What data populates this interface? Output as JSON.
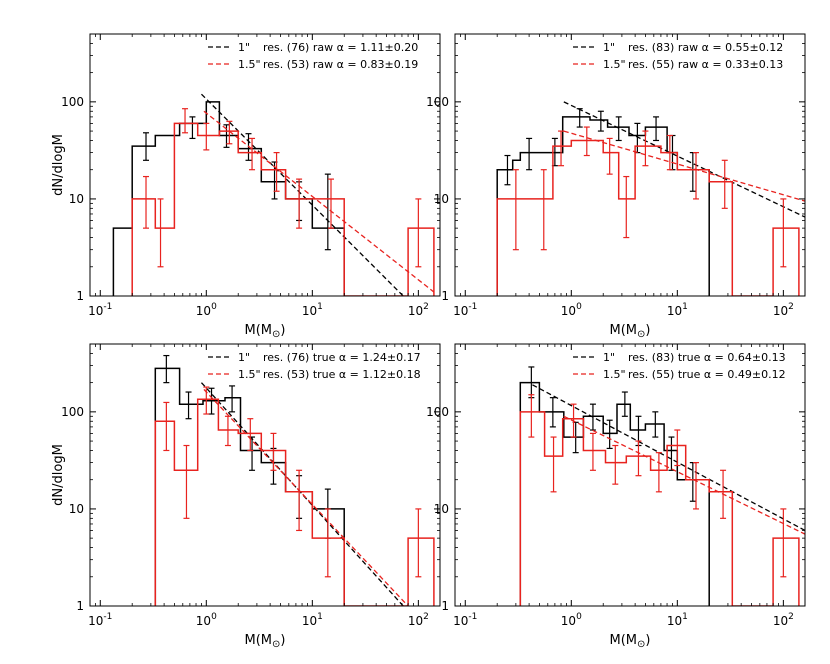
{
  "figure": {
    "ylabel": "dN/dlogM",
    "xlabel": "M(M",
    "xlabel_sub": "⊙",
    "xlabel_close": ")"
  },
  "axes": {
    "xscale": "log",
    "yscale": "log",
    "xlim": [
      0.08,
      160
    ],
    "ylim": [
      1,
      500
    ],
    "xticks": [
      {
        "value": 0.1,
        "base": "10",
        "exp": "-1"
      },
      {
        "value": 1,
        "base": "10",
        "exp": "0"
      },
      {
        "value": 10,
        "base": "10",
        "exp": "1"
      },
      {
        "value": 100,
        "base": "10",
        "exp": "2"
      }
    ],
    "yticks": [
      {
        "value": 1,
        "label": "1"
      },
      {
        "value": 10,
        "label": "10"
      },
      {
        "value": 100,
        "label": "100"
      }
    ]
  },
  "colors": {
    "black": "#000000",
    "red": "#e8231f"
  },
  "chart_data": [
    {
      "type": "line",
      "panel": "top-left",
      "show_xlabel": true,
      "show_ylabel": true,
      "legend_position": "top-right",
      "bin_edges_label": "histogram",
      "series": [
        {
          "name_a": "1\"",
          "name_b": "res. (76) raw",
          "alpha_label": "α = 1.11±0.20",
          "color": "black",
          "hist": [
            [
              0.133,
              5
            ],
            [
              0.2,
              35
            ],
            [
              0.33,
              45
            ],
            [
              0.56,
              60
            ],
            [
              1.0,
              100
            ],
            [
              1.33,
              45
            ],
            [
              2.0,
              33
            ],
            [
              3.3,
              15
            ],
            [
              5.6,
              10
            ],
            [
              10,
              5
            ],
            [
              20,
              0
            ]
          ],
          "hist_end": 20,
          "errors": [
            [
              0.27,
              35,
              25,
              48
            ],
            [
              0.74,
              55,
              42,
              70
            ],
            [
              1.55,
              45,
              34,
              58
            ],
            [
              2.5,
              35,
              25,
              47
            ],
            [
              4.4,
              16,
              10,
              24
            ],
            [
              7.5,
              10,
              6,
              15
            ],
            [
              14,
              5,
              3,
              18
            ]
          ],
          "fit": [
            [
              0.9,
              120
            ],
            [
              72,
              1
            ]
          ]
        },
        {
          "name_a": "1.5\"",
          "name_b": "res. (53) raw",
          "alpha_label": "α = 0.83±0.19",
          "color": "red",
          "hist": [
            [
              0.2,
              10
            ],
            [
              0.33,
              5
            ],
            [
              0.5,
              60
            ],
            [
              0.83,
              45
            ],
            [
              1.33,
              50
            ],
            [
              2.0,
              30
            ],
            [
              3.3,
              20
            ],
            [
              5.6,
              10
            ],
            [
              10,
              10
            ],
            [
              20,
              0
            ],
            [
              80,
              5
            ],
            [
              140,
              0
            ]
          ],
          "hist_end": 140,
          "errors": [
            [
              0.27,
              10,
              5,
              17
            ],
            [
              0.37,
              5,
              2,
              10
            ],
            [
              0.63,
              65,
              48,
              85
            ],
            [
              1.0,
              45,
              32,
              60
            ],
            [
              1.65,
              50,
              37,
              63
            ],
            [
              2.7,
              30,
              20,
              42
            ],
            [
              4.6,
              20,
              12,
              30
            ],
            [
              7.5,
              10,
              5,
              16
            ],
            [
              15,
              10,
              5,
              16
            ],
            [
              100,
              5,
              2,
              10
            ]
          ],
          "fit": [
            [
              0.95,
              80
            ],
            [
              140,
              1.1
            ]
          ]
        }
      ]
    },
    {
      "type": "line",
      "panel": "top-right",
      "show_xlabel": true,
      "show_ylabel": false,
      "legend_position": "top-right",
      "series": [
        {
          "name_a": "1\"",
          "name_b": "res. (83) raw",
          "alpha_label": "α = 0.55±0.12",
          "color": "black",
          "hist": [
            [
              0.2,
              20
            ],
            [
              0.28,
              25
            ],
            [
              0.33,
              30
            ],
            [
              0.6,
              30
            ],
            [
              0.83,
              70
            ],
            [
              1.5,
              65
            ],
            [
              2.2,
              55
            ],
            [
              3.5,
              45
            ],
            [
              5.0,
              55
            ],
            [
              8.0,
              30
            ],
            [
              10,
              20
            ],
            [
              20,
              0
            ]
          ],
          "hist_end": 20,
          "errors": [
            [
              0.25,
              20,
              14,
              28
            ],
            [
              0.4,
              30,
              20,
              42
            ],
            [
              0.7,
              30,
              22,
              42
            ],
            [
              1.2,
              70,
              55,
              85
            ],
            [
              1.9,
              65,
              50,
              80
            ],
            [
              2.8,
              55,
              40,
              70
            ],
            [
              4.2,
              45,
              30,
              60
            ],
            [
              6.3,
              55,
              40,
              70
            ],
            [
              9.0,
              30,
              20,
              45
            ],
            [
              14,
              20,
              12,
              30
            ]
          ],
          "fit": [
            [
              0.85,
              100
            ],
            [
              160,
              6.5
            ]
          ]
        },
        {
          "name_a": "1.5\"",
          "name_b": "res. (55) raw",
          "alpha_label": "α = 0.33±0.13",
          "color": "red",
          "hist": [
            [
              0.2,
              10
            ],
            [
              0.5,
              10
            ],
            [
              0.67,
              35
            ],
            [
              1.0,
              40
            ],
            [
              2.0,
              30
            ],
            [
              2.8,
              10
            ],
            [
              4.0,
              35
            ],
            [
              7.0,
              30
            ],
            [
              10,
              20
            ],
            [
              20,
              15
            ],
            [
              33,
              0
            ],
            [
              80,
              5
            ],
            [
              140,
              0
            ]
          ],
          "hist_end": 140,
          "errors": [
            [
              0.3,
              10,
              3,
              20
            ],
            [
              0.55,
              10,
              3,
              20
            ],
            [
              0.8,
              35,
              22,
              50
            ],
            [
              1.4,
              40,
              28,
              55
            ],
            [
              2.3,
              30,
              18,
              42
            ],
            [
              3.3,
              10,
              4,
              17
            ],
            [
              5.0,
              35,
              22,
              50
            ],
            [
              8.5,
              30,
              20,
              45
            ],
            [
              15,
              20,
              10,
              30
            ],
            [
              28,
              15,
              8,
              25
            ],
            [
              100,
              5,
              2,
              10
            ]
          ],
          "fit": [
            [
              0.85,
              50
            ],
            [
              160,
              9.5
            ]
          ]
        }
      ]
    },
    {
      "type": "line",
      "panel": "bottom-left",
      "show_xlabel": true,
      "show_ylabel": true,
      "legend_position": "top-right",
      "series": [
        {
          "name_a": "1\"",
          "name_b": "res. (76) true",
          "alpha_label": "α = 1.24±0.17",
          "color": "black",
          "hist": [
            [
              0.33,
              280
            ],
            [
              0.56,
              120
            ],
            [
              0.93,
              130
            ],
            [
              1.5,
              140
            ],
            [
              2.1,
              40
            ],
            [
              3.3,
              30
            ],
            [
              5.6,
              15
            ],
            [
              10,
              10
            ],
            [
              20,
              0
            ]
          ],
          "hist_end": 20,
          "errors": [
            [
              0.42,
              280,
              200,
              380
            ],
            [
              0.68,
              120,
              85,
              160
            ],
            [
              1.12,
              130,
              95,
              175
            ],
            [
              1.75,
              140,
              100,
              185
            ],
            [
              2.7,
              40,
              25,
              55
            ],
            [
              4.3,
              30,
              18,
              42
            ],
            [
              7.5,
              15,
              8,
              22
            ],
            [
              14,
              10,
              5,
              16
            ]
          ],
          "fit": [
            [
              0.9,
              200
            ],
            [
              72,
              1
            ]
          ]
        },
        {
          "name_a": "1.5\"",
          "name_b": "res. (53) true",
          "alpha_label": "α = 1.12±0.18",
          "color": "red",
          "hist": [
            [
              0.33,
              80
            ],
            [
              0.5,
              25
            ],
            [
              0.83,
              135
            ],
            [
              1.3,
              65
            ],
            [
              2.0,
              60
            ],
            [
              3.3,
              40
            ],
            [
              5.6,
              15
            ],
            [
              10,
              5
            ],
            [
              20,
              0
            ],
            [
              80,
              5
            ],
            [
              140,
              0
            ]
          ],
          "hist_end": 140,
          "errors": [
            [
              0.42,
              80,
              40,
              125
            ],
            [
              0.65,
              25,
              8,
              45
            ],
            [
              1.0,
              135,
              95,
              180
            ],
            [
              1.6,
              65,
              45,
              90
            ],
            [
              2.6,
              60,
              40,
              85
            ],
            [
              4.3,
              40,
              25,
              60
            ],
            [
              7.5,
              15,
              6,
              25
            ],
            [
              14,
              5,
              2,
              10
            ],
            [
              100,
              5,
              2,
              10
            ]
          ],
          "fit": [
            [
              0.95,
              170
            ],
            [
              80,
              1
            ]
          ]
        }
      ]
    },
    {
      "type": "line",
      "panel": "bottom-right",
      "show_xlabel": true,
      "show_ylabel": false,
      "legend_position": "top-right",
      "series": [
        {
          "name_a": "1\"",
          "name_b": "res. (83) true",
          "alpha_label": "α = 0.64±0.13",
          "color": "black",
          "hist": [
            [
              0.33,
              200
            ],
            [
              0.5,
              100
            ],
            [
              0.85,
              55
            ],
            [
              1.3,
              90
            ],
            [
              2.0,
              60
            ],
            [
              2.7,
              120
            ],
            [
              3.6,
              65
            ],
            [
              5.0,
              75
            ],
            [
              7.5,
              40
            ],
            [
              10,
              20
            ],
            [
              20,
              0
            ]
          ],
          "hist_end": 20,
          "errors": [
            [
              0.42,
              200,
              140,
              290
            ],
            [
              0.67,
              100,
              70,
              140
            ],
            [
              1.1,
              55,
              38,
              78
            ],
            [
              1.6,
              90,
              65,
              120
            ],
            [
              2.3,
              60,
              42,
              82
            ],
            [
              3.2,
              120,
              90,
              160
            ],
            [
              4.3,
              65,
              45,
              90
            ],
            [
              6.2,
              75,
              55,
              100
            ],
            [
              8.8,
              40,
              25,
              55
            ],
            [
              14,
              20,
              12,
              30
            ]
          ],
          "fit": [
            [
              0.43,
              190
            ],
            [
              160,
              6
            ]
          ]
        },
        {
          "name_a": "1.5\"",
          "name_b": "res. (55) true",
          "alpha_label": "α = 0.49±0.12",
          "color": "red",
          "hist": [
            [
              0.33,
              100
            ],
            [
              0.56,
              35
            ],
            [
              0.83,
              85
            ],
            [
              1.3,
              40
            ],
            [
              2.1,
              30
            ],
            [
              3.3,
              35
            ],
            [
              5.6,
              25
            ],
            [
              8.0,
              45
            ],
            [
              12,
              20
            ],
            [
              20,
              15
            ],
            [
              33,
              0
            ],
            [
              80,
              5
            ],
            [
              140,
              0
            ]
          ],
          "hist_end": 140,
          "errors": [
            [
              0.42,
              100,
              55,
              150
            ],
            [
              0.68,
              35,
              15,
              55
            ],
            [
              1.05,
              85,
              55,
              120
            ],
            [
              1.6,
              40,
              25,
              60
            ],
            [
              2.6,
              30,
              18,
              45
            ],
            [
              4.3,
              35,
              22,
              50
            ],
            [
              6.7,
              25,
              15,
              38
            ],
            [
              10,
              45,
              28,
              65
            ],
            [
              15,
              20,
              10,
              30
            ],
            [
              27,
              15,
              8,
              25
            ],
            [
              100,
              5,
              2,
              10
            ]
          ],
          "fit": [
            [
              0.85,
              90
            ],
            [
              160,
              5.5
            ]
          ]
        }
      ]
    }
  ]
}
